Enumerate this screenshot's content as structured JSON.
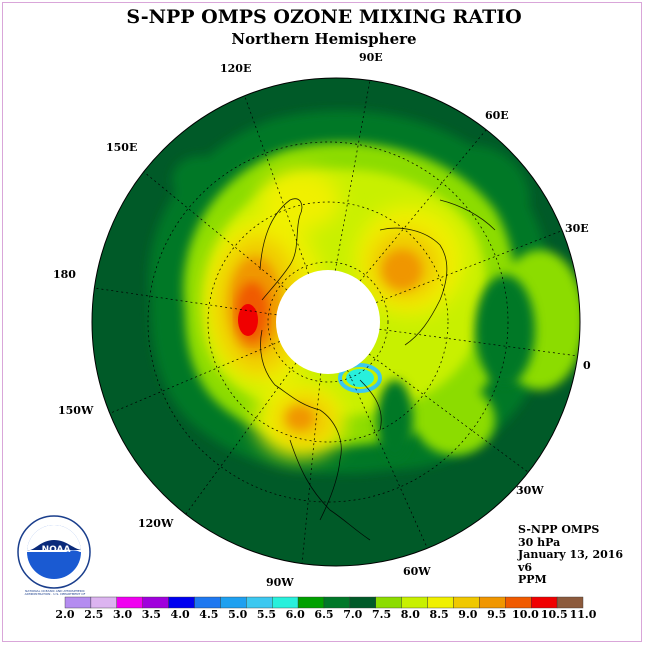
{
  "title": "S-NPP OMPS OZONE MIXING RATIO",
  "subtitle": "Northern Hemisphere",
  "longitude_labels": [
    "90E",
    "60E",
    "30E",
    "0",
    "30W",
    "60W",
    "90W",
    "120W",
    "150W",
    "180",
    "150E",
    "120E"
  ],
  "info": {
    "instrument": "S-NPP OMPS",
    "level": "30 hPa",
    "date": "January 13, 2016",
    "version": "v6",
    "units": "PPM"
  },
  "logo": {
    "text": "NOAA",
    "ring_text": "NATIONAL OCEANIC AND ATMOSPHERIC ADMINISTRATION · U.S. DEPARTMENT OF COMMERCE"
  },
  "colorbar": {
    "labels": [
      "2.0",
      "2.5",
      "3.0",
      "3.5",
      "4.0",
      "4.5",
      "5.0",
      "5.5",
      "6.0",
      "6.5",
      "7.0",
      "7.5",
      "8.0",
      "8.5",
      "9.0",
      "9.5",
      "10.0",
      "10.5",
      "11.0"
    ],
    "colors": [
      "#b48cf0",
      "#dcb4f0",
      "#f000f0",
      "#a000dc",
      "#0000f0",
      "#1e78f0",
      "#1ea0f0",
      "#3cc8f0",
      "#28f0dc",
      "#00a000",
      "#007828",
      "#005a28",
      "#8cdc00",
      "#c8f000",
      "#f0f000",
      "#f0c800",
      "#f09600",
      "#f05a00",
      "#f00000",
      "#8c5a3c"
    ]
  },
  "colors": {
    "background": "#ffffff",
    "frame": "#d9a6d9",
    "polar_night": "#ffffff"
  }
}
